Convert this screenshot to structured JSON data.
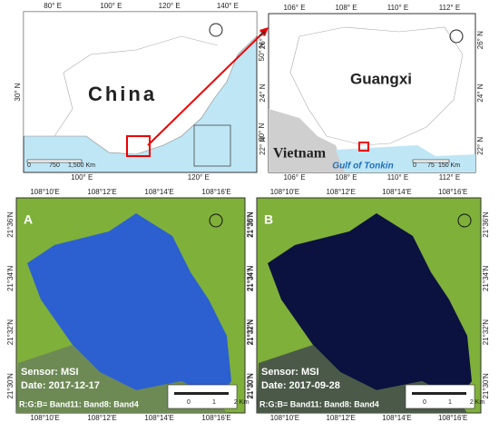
{
  "panels": [
    {
      "top_ticks": [
        "80° E",
        "100° E",
        "120° E",
        "140° E"
      ],
      "bottom_ticks": [
        "100° E",
        "120° E"
      ],
      "left_ticks": [
        "30° N"
      ],
      "right_ticks": [
        "50° N",
        "30° N"
      ],
      "labels": [
        "China"
      ],
      "scale": [
        "0",
        "750",
        "1,500 Km"
      ]
    },
    {
      "top_ticks": [
        "106° E",
        "108° E",
        "110° E",
        "112° E"
      ],
      "bottom_ticks": [
        "106° E",
        "108° E",
        "110° E",
        "112° E"
      ],
      "left_ticks": [
        "26° N",
        "24° N",
        "22° N"
      ],
      "right_ticks": [
        "26° N",
        "24° N",
        "22° N"
      ],
      "labels": [
        "Guangxi",
        "Vietnam",
        "Gulf of Tonkin"
      ],
      "scale": [
        "0",
        "75",
        "150 Km"
      ]
    },
    {
      "letter": "A",
      "top_ticks": [
        "108°10'E",
        "108°12'E",
        "108°14'E",
        "108°16'E"
      ],
      "bottom_ticks": [
        "108°10'E",
        "108°12'E",
        "108°14'E",
        "108°16'E"
      ],
      "left_ticks": [
        "21°36'N",
        "21°34'N",
        "21°32'N",
        "21°30'N"
      ],
      "right_ticks": [
        "21°36'N",
        "21°34'N",
        "21°32'N",
        "21°30'N"
      ],
      "sensor": "Sensor: MSI",
      "date": "Date: 2017-12-17",
      "bands": "R:G:B= Band11: Band8: Band4",
      "scale": [
        "0",
        "1",
        "2 Km"
      ]
    },
    {
      "letter": "B",
      "top_ticks": [
        "108°10'E",
        "108°12'E",
        "108°14'E",
        "108°16'E"
      ],
      "bottom_ticks": [
        "108°10'E",
        "108°12'E",
        "108°14'E",
        "108°16'E"
      ],
      "left_ticks": [
        "21°36'N",
        "21°34'N",
        "21°32'N",
        "21°30'N"
      ],
      "right_ticks": [
        "21°36'N",
        "21°34'N",
        "21°32'N",
        "21°30'N"
      ],
      "sensor": "Sensor: MSI",
      "date": "Date: 2017-09-28",
      "bands": "R:G:B= Band11: Band8: Band4",
      "scale": [
        "0",
        "1",
        "2 Km"
      ]
    }
  ]
}
